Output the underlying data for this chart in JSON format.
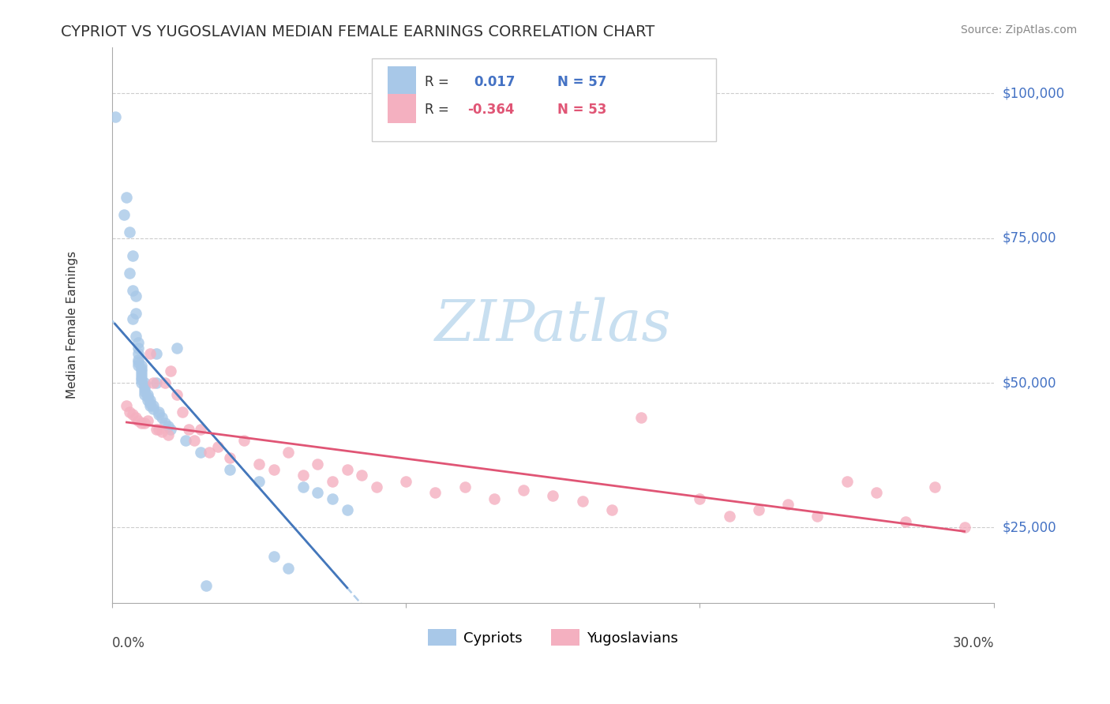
{
  "title": "CYPRIOT VS YUGOSLAVIAN MEDIAN FEMALE EARNINGS CORRELATION CHART",
  "source": "Source: ZipAtlas.com",
  "ylabel": "Median Female Earnings",
  "yticks": [
    25000,
    50000,
    75000,
    100000
  ],
  "ytick_labels": [
    "$25,000",
    "$50,000",
    "$75,000",
    "$100,000"
  ],
  "xlim": [
    0.0,
    0.3
  ],
  "ylim": [
    12000,
    108000
  ],
  "cypriot_R": 0.017,
  "cypriot_N": 57,
  "yugoslav_R": -0.364,
  "yugoslav_N": 53,
  "cypriot_color": "#a8c8e8",
  "yugoslav_color": "#f4b0c0",
  "cypriot_line_color": "#4477bb",
  "yugoslav_line_color": "#e05575",
  "cypriot_x": [
    0.001,
    0.004,
    0.005,
    0.006,
    0.006,
    0.007,
    0.007,
    0.007,
    0.008,
    0.008,
    0.008,
    0.009,
    0.009,
    0.009,
    0.009,
    0.009,
    0.009,
    0.01,
    0.01,
    0.01,
    0.01,
    0.01,
    0.01,
    0.01,
    0.011,
    0.011,
    0.011,
    0.011,
    0.011,
    0.012,
    0.012,
    0.012,
    0.013,
    0.013,
    0.013,
    0.014,
    0.014,
    0.015,
    0.015,
    0.016,
    0.016,
    0.017,
    0.018,
    0.019,
    0.02,
    0.022,
    0.025,
    0.03,
    0.032,
    0.04,
    0.05,
    0.055,
    0.06,
    0.065,
    0.07,
    0.075,
    0.08
  ],
  "cypriot_y": [
    96000,
    79000,
    82000,
    76000,
    69000,
    72000,
    66000,
    61000,
    65000,
    62000,
    58000,
    57000,
    56000,
    55000,
    54000,
    53500,
    53000,
    53000,
    52500,
    52000,
    51500,
    51000,
    50500,
    50000,
    50000,
    49500,
    49000,
    48500,
    48000,
    48000,
    47500,
    47000,
    47000,
    46500,
    46000,
    46000,
    45500,
    50000,
    55000,
    45000,
    44500,
    44000,
    43000,
    42500,
    42000,
    56000,
    40000,
    38000,
    15000,
    35000,
    33000,
    20000,
    18000,
    32000,
    31000,
    30000,
    28000
  ],
  "yugoslav_x": [
    0.005,
    0.006,
    0.007,
    0.008,
    0.009,
    0.01,
    0.011,
    0.012,
    0.013,
    0.014,
    0.015,
    0.016,
    0.017,
    0.018,
    0.019,
    0.02,
    0.022,
    0.024,
    0.026,
    0.028,
    0.03,
    0.033,
    0.036,
    0.04,
    0.045,
    0.05,
    0.055,
    0.06,
    0.065,
    0.07,
    0.075,
    0.08,
    0.085,
    0.09,
    0.1,
    0.11,
    0.12,
    0.13,
    0.14,
    0.15,
    0.16,
    0.17,
    0.18,
    0.2,
    0.21,
    0.22,
    0.23,
    0.24,
    0.25,
    0.26,
    0.27,
    0.28,
    0.29
  ],
  "yugoslav_y": [
    46000,
    45000,
    44500,
    44000,
    43500,
    43000,
    43000,
    43500,
    55000,
    50000,
    42000,
    42000,
    41500,
    50000,
    41000,
    52000,
    48000,
    45000,
    42000,
    40000,
    42000,
    38000,
    39000,
    37000,
    40000,
    36000,
    35000,
    38000,
    34000,
    36000,
    33000,
    35000,
    34000,
    32000,
    33000,
    31000,
    32000,
    30000,
    31500,
    30500,
    29500,
    28000,
    44000,
    30000,
    27000,
    28000,
    29000,
    27000,
    33000,
    31000,
    26000,
    32000,
    25000
  ],
  "watermark_text": "ZIPatlas",
  "watermark_color": "#c8dff0",
  "background_color": "#ffffff"
}
